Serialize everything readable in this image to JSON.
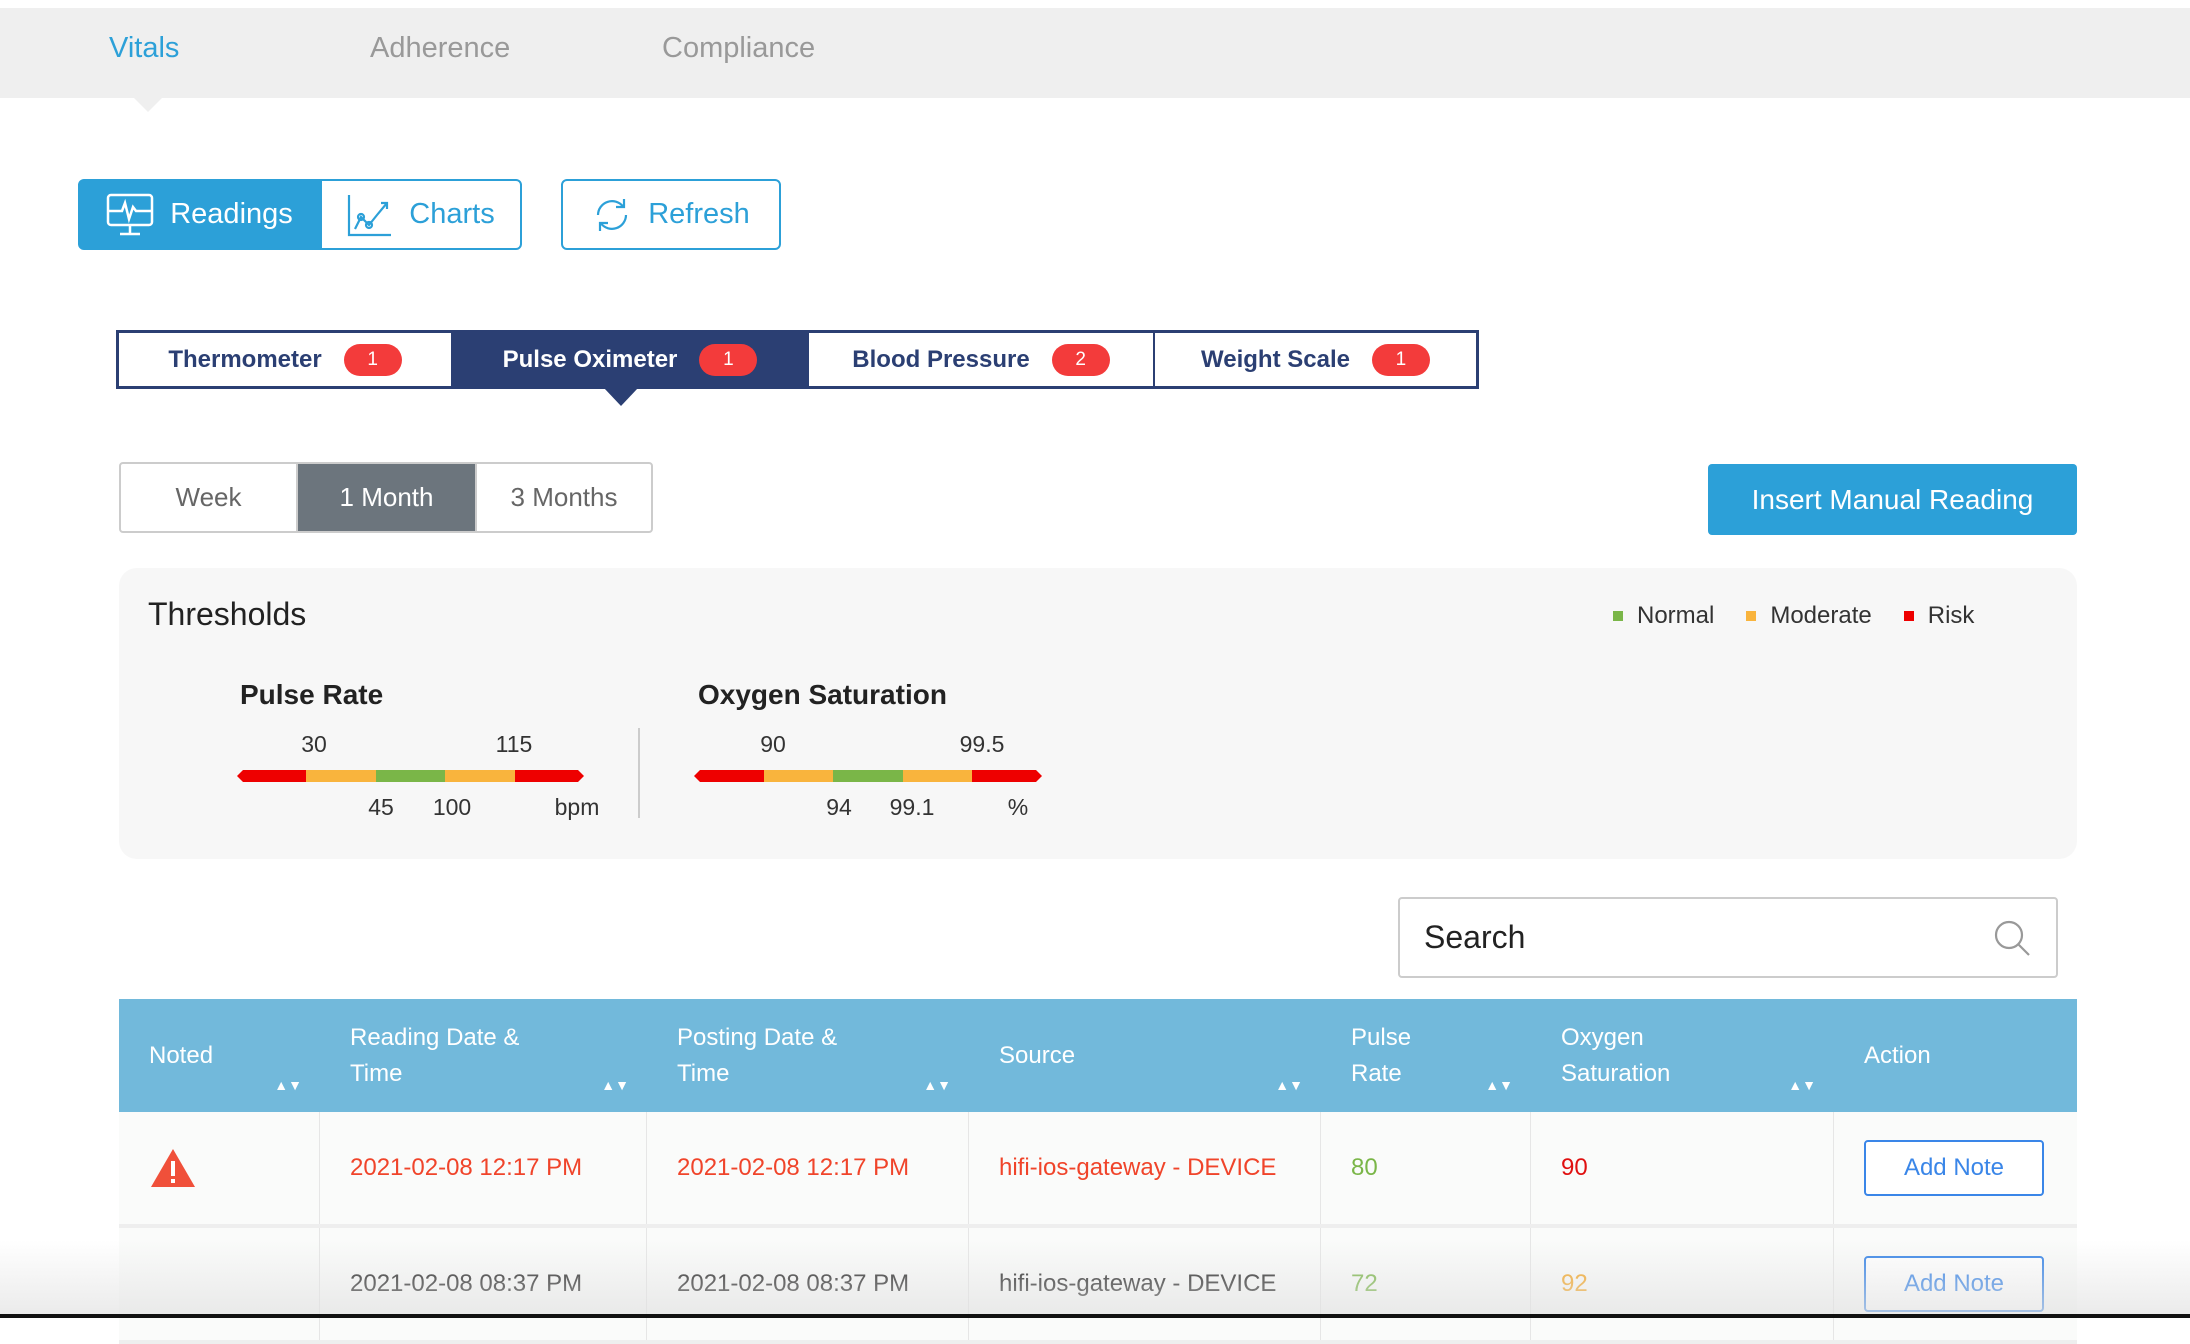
{
  "top_tabs": [
    "Vitals",
    "Adherence",
    "Compliance"
  ],
  "view_buttons": {
    "readings": "Readings",
    "charts": "Charts",
    "refresh": "Refresh"
  },
  "device_tabs": [
    {
      "label": "Thermometer",
      "count": "1"
    },
    {
      "label": "Pulse Oximeter",
      "count": "1"
    },
    {
      "label": "Blood Pressure",
      "count": "2"
    },
    {
      "label": "Weight Scale",
      "count": "1"
    }
  ],
  "period_tabs": [
    "Week",
    "1 Month",
    "3 Months"
  ],
  "insert_button": "Insert Manual Reading",
  "thresholds": {
    "title": "Thresholds",
    "legend": [
      {
        "label": "Normal",
        "color": "#7ab648"
      },
      {
        "label": "Moderate",
        "color": "#f9b43d"
      },
      {
        "label": "Risk",
        "color": "#ee0000"
      }
    ],
    "pulse": {
      "title": "Pulse Rate",
      "top": [
        "30",
        "115"
      ],
      "bottom": [
        "45",
        "100"
      ],
      "unit": "bpm"
    },
    "oxygen": {
      "title": "Oxygen Saturation",
      "top": [
        "90",
        "99.5"
      ],
      "bottom": [
        "94",
        "99.1"
      ],
      "unit": "%"
    }
  },
  "search": {
    "placeholder": "Search"
  },
  "table": {
    "headers": [
      "Noted",
      "Reading Date & Time",
      "Posting Date & Time",
      "Source",
      "Pulse Rate",
      "Oxygen Saturation",
      "Action"
    ],
    "rows": [
      {
        "reading": "2021-02-08 12:17 PM",
        "posting": "2021-02-08 12:17 PM",
        "source": "hifi-ios-gateway - DEVICE",
        "pulse": "80",
        "oxygen": "90",
        "action": "Add Note"
      },
      {
        "reading": "2021-02-08 08:37 PM",
        "posting": "2021-02-08 08:37 PM",
        "source": "hifi-ios-gateway - DEVICE",
        "pulse": "72",
        "oxygen": "92",
        "action": "Add Note"
      }
    ]
  }
}
